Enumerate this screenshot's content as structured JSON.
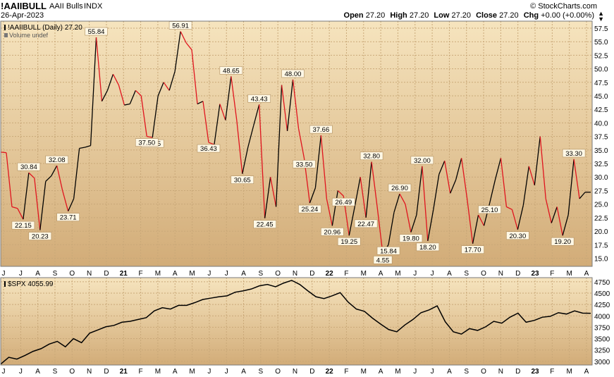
{
  "header": {
    "symbol": "!AAIIBULL",
    "name": "AAII Bulls",
    "exchange": "INDX",
    "date": "26-Apr-2023",
    "copyright": "© StockCharts.com",
    "open_label": "Open",
    "open": "27.20",
    "high_label": "High",
    "high": "27.20",
    "low_label": "Low",
    "low": "27.20",
    "close_label": "Close",
    "close": "27.20",
    "chg_label": "Chg",
    "chg": "+0.00 (+0.00%)"
  },
  "colors": {
    "panel_bg_top": "#f6e4be",
    "panel_bg_bottom": "#d2ac78",
    "up_line": "#000000",
    "down_line": "#e0141e"
  },
  "chart_data": [
    {
      "type": "line",
      "title": "!AAIIBULL (Daily) 27.20",
      "subtitle": "Volume undef",
      "y_ticks": [
        "15.0",
        "17.5",
        "20.0",
        "22.5",
        "25.0",
        "27.5",
        "30.0",
        "32.5",
        "35.0",
        "37.5",
        "40.0",
        "42.5",
        "45.0",
        "47.5",
        "50.0",
        "52.5",
        "55.0",
        "57.5"
      ],
      "ylim": [
        13.5,
        58.8
      ],
      "x_ticks": [
        "J",
        "J",
        "A",
        "S",
        "O",
        "N",
        "D",
        "21",
        "F",
        "M",
        "A",
        "M",
        "J",
        "J",
        "A",
        "S",
        "O",
        "N",
        "D",
        "22",
        "F",
        "M",
        "A",
        "M",
        "J",
        "J",
        "A",
        "S",
        "O",
        "N",
        "D",
        "23",
        "F",
        "M",
        "A"
      ],
      "annotations": [
        "4.55",
        "22.15",
        "30.84",
        "20.23",
        "32.08",
        "23.71",
        "55.84",
        "37.35",
        "56.91",
        "36.43",
        "48.65",
        "30.65",
        "43.43",
        "22.45",
        "48.00",
        "25.24",
        "37.66",
        "20.96",
        "26.49",
        "19.25",
        "32.80",
        "22.47",
        "15.84",
        "26.90",
        "19.80",
        "32.00",
        "18.20",
        "17.70",
        "25.10",
        "33.50",
        "20.30",
        "37.50",
        "19.20",
        "33.30"
      ],
      "x_start": "2020-05-14",
      "x_end": "2023-04-26",
      "values": [
        34.6,
        34.5,
        24.5,
        24.2,
        22.2,
        30.8,
        29.8,
        20.2,
        29.2,
        30.2,
        32.1,
        27.5,
        23.7,
        26.0,
        35.3,
        35.5,
        35.8,
        55.8,
        44.0,
        46.0,
        49.0,
        47.0,
        43.3,
        43.5,
        46.0,
        45.0,
        37.5,
        37.3,
        45.0,
        47.5,
        46.0,
        49.5,
        56.9,
        54.8,
        53.5,
        43.5,
        44.0,
        36.4,
        36.0,
        43.5,
        40.5,
        48.6,
        40.5,
        30.6,
        35.5,
        39.5,
        43.4,
        22.4,
        30.0,
        24.5,
        47.0,
        38.5,
        48.0,
        39.0,
        33.5,
        25.2,
        28.0,
        37.7,
        26.0,
        21.0,
        27.5,
        26.5,
        19.2,
        24.5,
        30.0,
        22.5,
        32.8,
        24.5,
        15.8,
        17.5,
        23.5,
        26.9,
        25.0,
        19.8,
        23.0,
        32.0,
        18.2,
        24.0,
        30.5,
        33.0,
        27.0,
        29.5,
        33.5,
        26.0,
        17.7,
        23.0,
        21.0,
        25.1,
        29.5,
        33.5,
        24.5,
        24.0,
        20.3,
        24.8,
        32.0,
        28.5,
        37.5,
        26.0,
        21.5,
        24.5,
        19.2,
        23.0,
        33.3,
        26.0,
        27.2,
        27.2
      ]
    },
    {
      "type": "line",
      "title": "$SPX 4055.99",
      "y_ticks": [
        "3000",
        "3250",
        "3500",
        "3750",
        "4000",
        "4250",
        "4500",
        "4750"
      ],
      "ylim": [
        2920,
        4840
      ],
      "x_ticks": [
        "J",
        "J",
        "A",
        "S",
        "O",
        "N",
        "D",
        "21",
        "F",
        "M",
        "A",
        "M",
        "J",
        "J",
        "A",
        "S",
        "O",
        "N",
        "D",
        "22",
        "F",
        "M",
        "A",
        "M",
        "J",
        "J",
        "A",
        "S",
        "O",
        "N",
        "D",
        "23",
        "F",
        "M",
        "A"
      ],
      "x_start": "2020-05-14",
      "x_end": "2023-04-26",
      "values": [
        2940,
        3090,
        3050,
        3130,
        3220,
        3280,
        3380,
        3440,
        3320,
        3500,
        3410,
        3620,
        3690,
        3760,
        3790,
        3860,
        3880,
        3920,
        3960,
        4110,
        4180,
        4150,
        4230,
        4230,
        4290,
        4360,
        4390,
        4420,
        4440,
        4520,
        4550,
        4590,
        4660,
        4690,
        4640,
        4720,
        4780,
        4690,
        4550,
        4420,
        4380,
        4440,
        4510,
        4300,
        4150,
        4100,
        3950,
        3820,
        3700,
        3650,
        3800,
        3920,
        4070,
        4130,
        4220,
        3870,
        3650,
        3600,
        3720,
        3680,
        3760,
        3880,
        3840,
        3970,
        4060,
        3860,
        3900,
        3970,
        3990,
        4070,
        4040,
        4110,
        4060,
        4056
      ]
    }
  ]
}
